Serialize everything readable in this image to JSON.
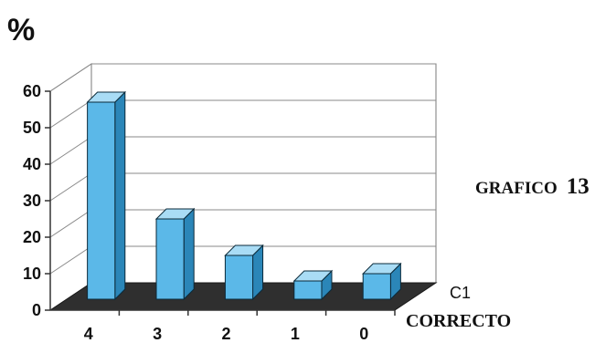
{
  "chart_data": {
    "type": "bar",
    "categories": [
      "4",
      "3",
      "2",
      "1",
      "0"
    ],
    "series": [
      {
        "name": "C1",
        "values": [
          54,
          22,
          12,
          5,
          7
        ]
      }
    ],
    "ylabel": "%",
    "xlabel": "CORRECTO",
    "title": "GRAFICO",
    "title_number": "13",
    "yticks": [
      0,
      10,
      20,
      30,
      40,
      50,
      60
    ],
    "ylim": [
      0,
      60
    ],
    "grid": true,
    "legend": "none",
    "bar_color": "#5bb8e8",
    "bar_side_color": "#2b86b8",
    "bar_top_color": "#a9dcf5",
    "floor_color": "#2f2f2f"
  }
}
